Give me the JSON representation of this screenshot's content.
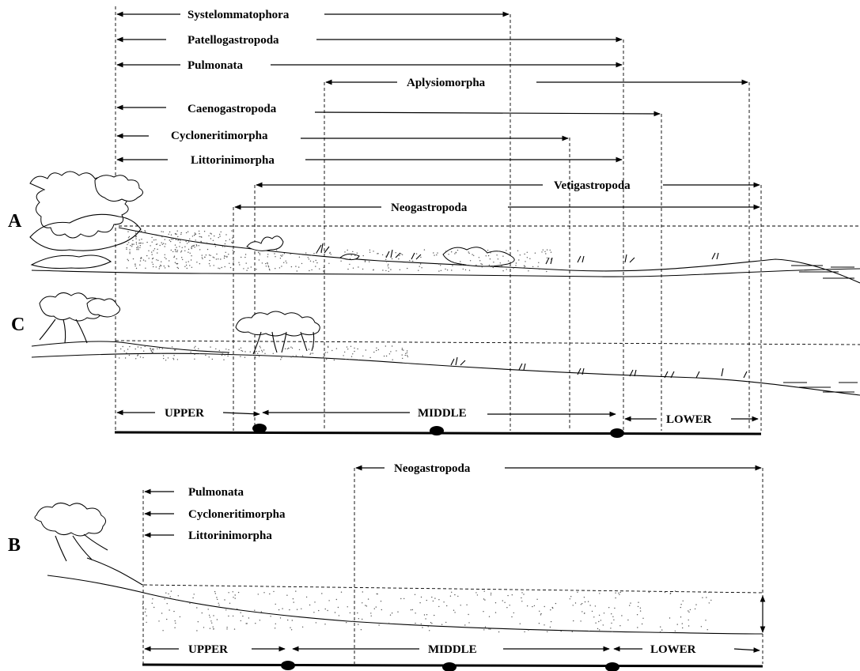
{
  "panels": {
    "a": "A",
    "c": "C",
    "b": "B"
  },
  "taxa_ac": [
    {
      "id": "systelommatophora",
      "name": "Systelommatophora"
    },
    {
      "id": "patellogastropoda",
      "name": "Patellogastropoda"
    },
    {
      "id": "pulmonata",
      "name": "Pulmonata"
    },
    {
      "id": "aplysiomorpha",
      "name": "Aplysiomorpha"
    },
    {
      "id": "caenogastropoda",
      "name": "Caenogastropoda"
    },
    {
      "id": "cycloneritimorpha",
      "name": "Cycloneritimorpha"
    },
    {
      "id": "littorinimorpha",
      "name": "Littorinimorpha"
    },
    {
      "id": "vetigastropoda",
      "name": "Vetigastropoda"
    },
    {
      "id": "neogastropoda",
      "name": "Neogastropoda"
    }
  ],
  "taxa_b": [
    {
      "id": "neogastropoda",
      "name": "Neogastropoda"
    },
    {
      "id": "pulmonata",
      "name": "Pulmonata"
    },
    {
      "id": "cycloneritimorpha",
      "name": "Cycloneritimorpha"
    },
    {
      "id": "littorinimorpha",
      "name": "Littorinimorpha"
    }
  ],
  "zones_ac": {
    "upper": "UPPER",
    "middle": "MIDDLE",
    "lower": "LOWER"
  },
  "zones_b": {
    "upper": "UPPER",
    "middle": "MIDDLE",
    "lower": "LOWER"
  }
}
